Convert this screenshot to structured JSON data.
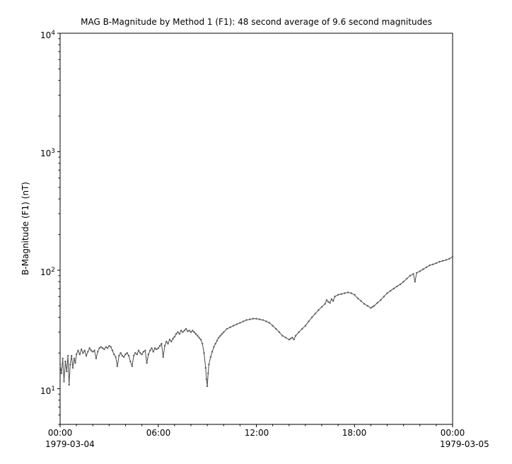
{
  "chart_data": {
    "type": "line",
    "title": "MAG  B-Magnitude by Method 1 (F1): 48 second average of 9.6 second magnitudes",
    "ylabel": "B-Magnitude (F1) (nT)",
    "xlabel": "",
    "yscale": "log",
    "ylim": [
      5,
      10000
    ],
    "xlim_hours": [
      0,
      24
    ],
    "grid": false,
    "legend": "none",
    "marker_color": "#5a5a5a",
    "axis_color": "#000000",
    "date_left": "1979-03-04",
    "date_right": "1979-03-05",
    "x_ticks": [
      {
        "hour": 0,
        "label": "00:00"
      },
      {
        "hour": 6,
        "label": "06:00"
      },
      {
        "hour": 12,
        "label": "12:00"
      },
      {
        "hour": 18,
        "label": "18:00"
      },
      {
        "hour": 24,
        "label": "00:00"
      }
    ],
    "x_minor_tick_every_hours": 1,
    "y_ticks": [
      {
        "value": 10,
        "base": "10",
        "exp": "1"
      },
      {
        "value": 100,
        "base": "10",
        "exp": "2"
      },
      {
        "value": 1000,
        "base": "10",
        "exp": "3"
      },
      {
        "value": 10000,
        "base": "10",
        "exp": "4"
      }
    ],
    "points": [
      [
        0.0,
        16
      ],
      [
        0.08,
        13.5
      ],
      [
        0.16,
        18
      ],
      [
        0.24,
        11.5
      ],
      [
        0.32,
        17
      ],
      [
        0.4,
        14
      ],
      [
        0.48,
        19
      ],
      [
        0.55,
        10.8
      ],
      [
        0.62,
        16
      ],
      [
        0.7,
        19
      ],
      [
        0.78,
        15
      ],
      [
        0.86,
        18
      ],
      [
        0.93,
        16.5
      ],
      [
        1.0,
        19.5
      ],
      [
        1.1,
        21
      ],
      [
        1.2,
        19.5
      ],
      [
        1.3,
        21.5
      ],
      [
        1.4,
        20
      ],
      [
        1.5,
        21
      ],
      [
        1.6,
        19
      ],
      [
        1.7,
        20.5
      ],
      [
        1.8,
        22
      ],
      [
        1.9,
        21
      ],
      [
        2.0,
        20.5
      ],
      [
        2.1,
        21
      ],
      [
        2.2,
        18
      ],
      [
        2.3,
        20.5
      ],
      [
        2.4,
        22
      ],
      [
        2.5,
        22.5
      ],
      [
        2.6,
        22
      ],
      [
        2.7,
        21.5
      ],
      [
        2.8,
        22.5
      ],
      [
        2.9,
        22
      ],
      [
        3.0,
        23
      ],
      [
        3.1,
        22.5
      ],
      [
        3.2,
        21
      ],
      [
        3.3,
        19.5
      ],
      [
        3.4,
        18.5
      ],
      [
        3.5,
        15.5
      ],
      [
        3.6,
        19
      ],
      [
        3.7,
        20
      ],
      [
        3.8,
        19
      ],
      [
        3.9,
        18.5
      ],
      [
        4.0,
        19.5
      ],
      [
        4.1,
        20
      ],
      [
        4.2,
        19
      ],
      [
        4.3,
        17
      ],
      [
        4.4,
        15.5
      ],
      [
        4.5,
        19
      ],
      [
        4.6,
        20
      ],
      [
        4.7,
        19.5
      ],
      [
        4.8,
        21
      ],
      [
        4.9,
        20
      ],
      [
        5.0,
        19.5
      ],
      [
        5.1,
        20.5
      ],
      [
        5.2,
        21
      ],
      [
        5.3,
        16.5
      ],
      [
        5.4,
        19.5
      ],
      [
        5.5,
        21
      ],
      [
        5.6,
        22
      ],
      [
        5.7,
        20.5
      ],
      [
        5.8,
        22
      ],
      [
        5.9,
        21.5
      ],
      [
        6.0,
        22
      ],
      [
        6.1,
        23
      ],
      [
        6.2,
        24
      ],
      [
        6.3,
        18.5
      ],
      [
        6.4,
        23
      ],
      [
        6.5,
        25
      ],
      [
        6.6,
        24
      ],
      [
        6.7,
        26
      ],
      [
        6.8,
        25
      ],
      [
        6.9,
        26.5
      ],
      [
        7.0,
        27.5
      ],
      [
        7.1,
        29
      ],
      [
        7.2,
        30
      ],
      [
        7.3,
        29
      ],
      [
        7.4,
        31
      ],
      [
        7.5,
        30
      ],
      [
        7.6,
        31
      ],
      [
        7.7,
        32
      ],
      [
        7.8,
        30.5
      ],
      [
        7.9,
        31
      ],
      [
        8.0,
        30
      ],
      [
        8.1,
        31
      ],
      [
        8.2,
        30
      ],
      [
        8.3,
        29
      ],
      [
        8.4,
        28
      ],
      [
        8.5,
        27
      ],
      [
        8.6,
        26
      ],
      [
        8.7,
        24
      ],
      [
        8.8,
        20
      ],
      [
        8.9,
        15
      ],
      [
        8.95,
        12
      ],
      [
        9.0,
        10.5
      ],
      [
        9.05,
        13.5
      ],
      [
        9.1,
        16
      ],
      [
        9.2,
        18.5
      ],
      [
        9.3,
        20.5
      ],
      [
        9.4,
        22.5
      ],
      [
        9.5,
        24
      ],
      [
        9.6,
        25.5
      ],
      [
        9.7,
        27
      ],
      [
        9.8,
        28
      ],
      [
        9.9,
        29
      ],
      [
        10.0,
        30
      ],
      [
        10.2,
        32
      ],
      [
        10.4,
        33
      ],
      [
        10.6,
        34
      ],
      [
        10.8,
        35
      ],
      [
        11.0,
        36
      ],
      [
        11.2,
        37
      ],
      [
        11.4,
        38
      ],
      [
        11.6,
        38.5
      ],
      [
        11.8,
        39
      ],
      [
        12.0,
        39
      ],
      [
        12.2,
        38.5
      ],
      [
        12.4,
        38
      ],
      [
        12.6,
        37
      ],
      [
        12.8,
        36
      ],
      [
        13.0,
        34
      ],
      [
        13.2,
        32
      ],
      [
        13.4,
        30
      ],
      [
        13.6,
        28
      ],
      [
        13.8,
        27
      ],
      [
        14.0,
        26
      ],
      [
        14.1,
        26.5
      ],
      [
        14.2,
        27
      ],
      [
        14.3,
        26
      ],
      [
        14.4,
        28
      ],
      [
        14.6,
        30
      ],
      [
        14.8,
        32
      ],
      [
        15.0,
        34
      ],
      [
        15.2,
        37
      ],
      [
        15.4,
        40
      ],
      [
        15.6,
        43
      ],
      [
        15.8,
        46
      ],
      [
        16.0,
        49
      ],
      [
        16.2,
        52
      ],
      [
        16.3,
        56
      ],
      [
        16.4,
        54
      ],
      [
        16.5,
        53
      ],
      [
        16.6,
        57
      ],
      [
        16.7,
        55
      ],
      [
        16.8,
        60
      ],
      [
        17.0,
        62
      ],
      [
        17.2,
        63
      ],
      [
        17.4,
        64
      ],
      [
        17.6,
        65
      ],
      [
        17.8,
        64
      ],
      [
        18.0,
        62
      ],
      [
        18.2,
        58
      ],
      [
        18.4,
        55
      ],
      [
        18.6,
        52
      ],
      [
        18.8,
        50
      ],
      [
        19.0,
        48
      ],
      [
        19.1,
        49
      ],
      [
        19.2,
        50
      ],
      [
        19.4,
        53
      ],
      [
        19.6,
        56
      ],
      [
        19.8,
        60
      ],
      [
        20.0,
        64
      ],
      [
        20.2,
        67
      ],
      [
        20.4,
        70
      ],
      [
        20.6,
        73
      ],
      [
        20.8,
        76
      ],
      [
        21.0,
        80
      ],
      [
        21.2,
        85
      ],
      [
        21.4,
        90
      ],
      [
        21.6,
        93
      ],
      [
        21.7,
        80
      ],
      [
        21.8,
        95
      ],
      [
        22.0,
        98
      ],
      [
        22.2,
        102
      ],
      [
        22.4,
        106
      ],
      [
        22.6,
        110
      ],
      [
        22.8,
        112
      ],
      [
        23.0,
        115
      ],
      [
        23.2,
        118
      ],
      [
        23.4,
        120
      ],
      [
        23.6,
        122
      ],
      [
        23.8,
        125
      ],
      [
        24.0,
        130
      ]
    ]
  }
}
